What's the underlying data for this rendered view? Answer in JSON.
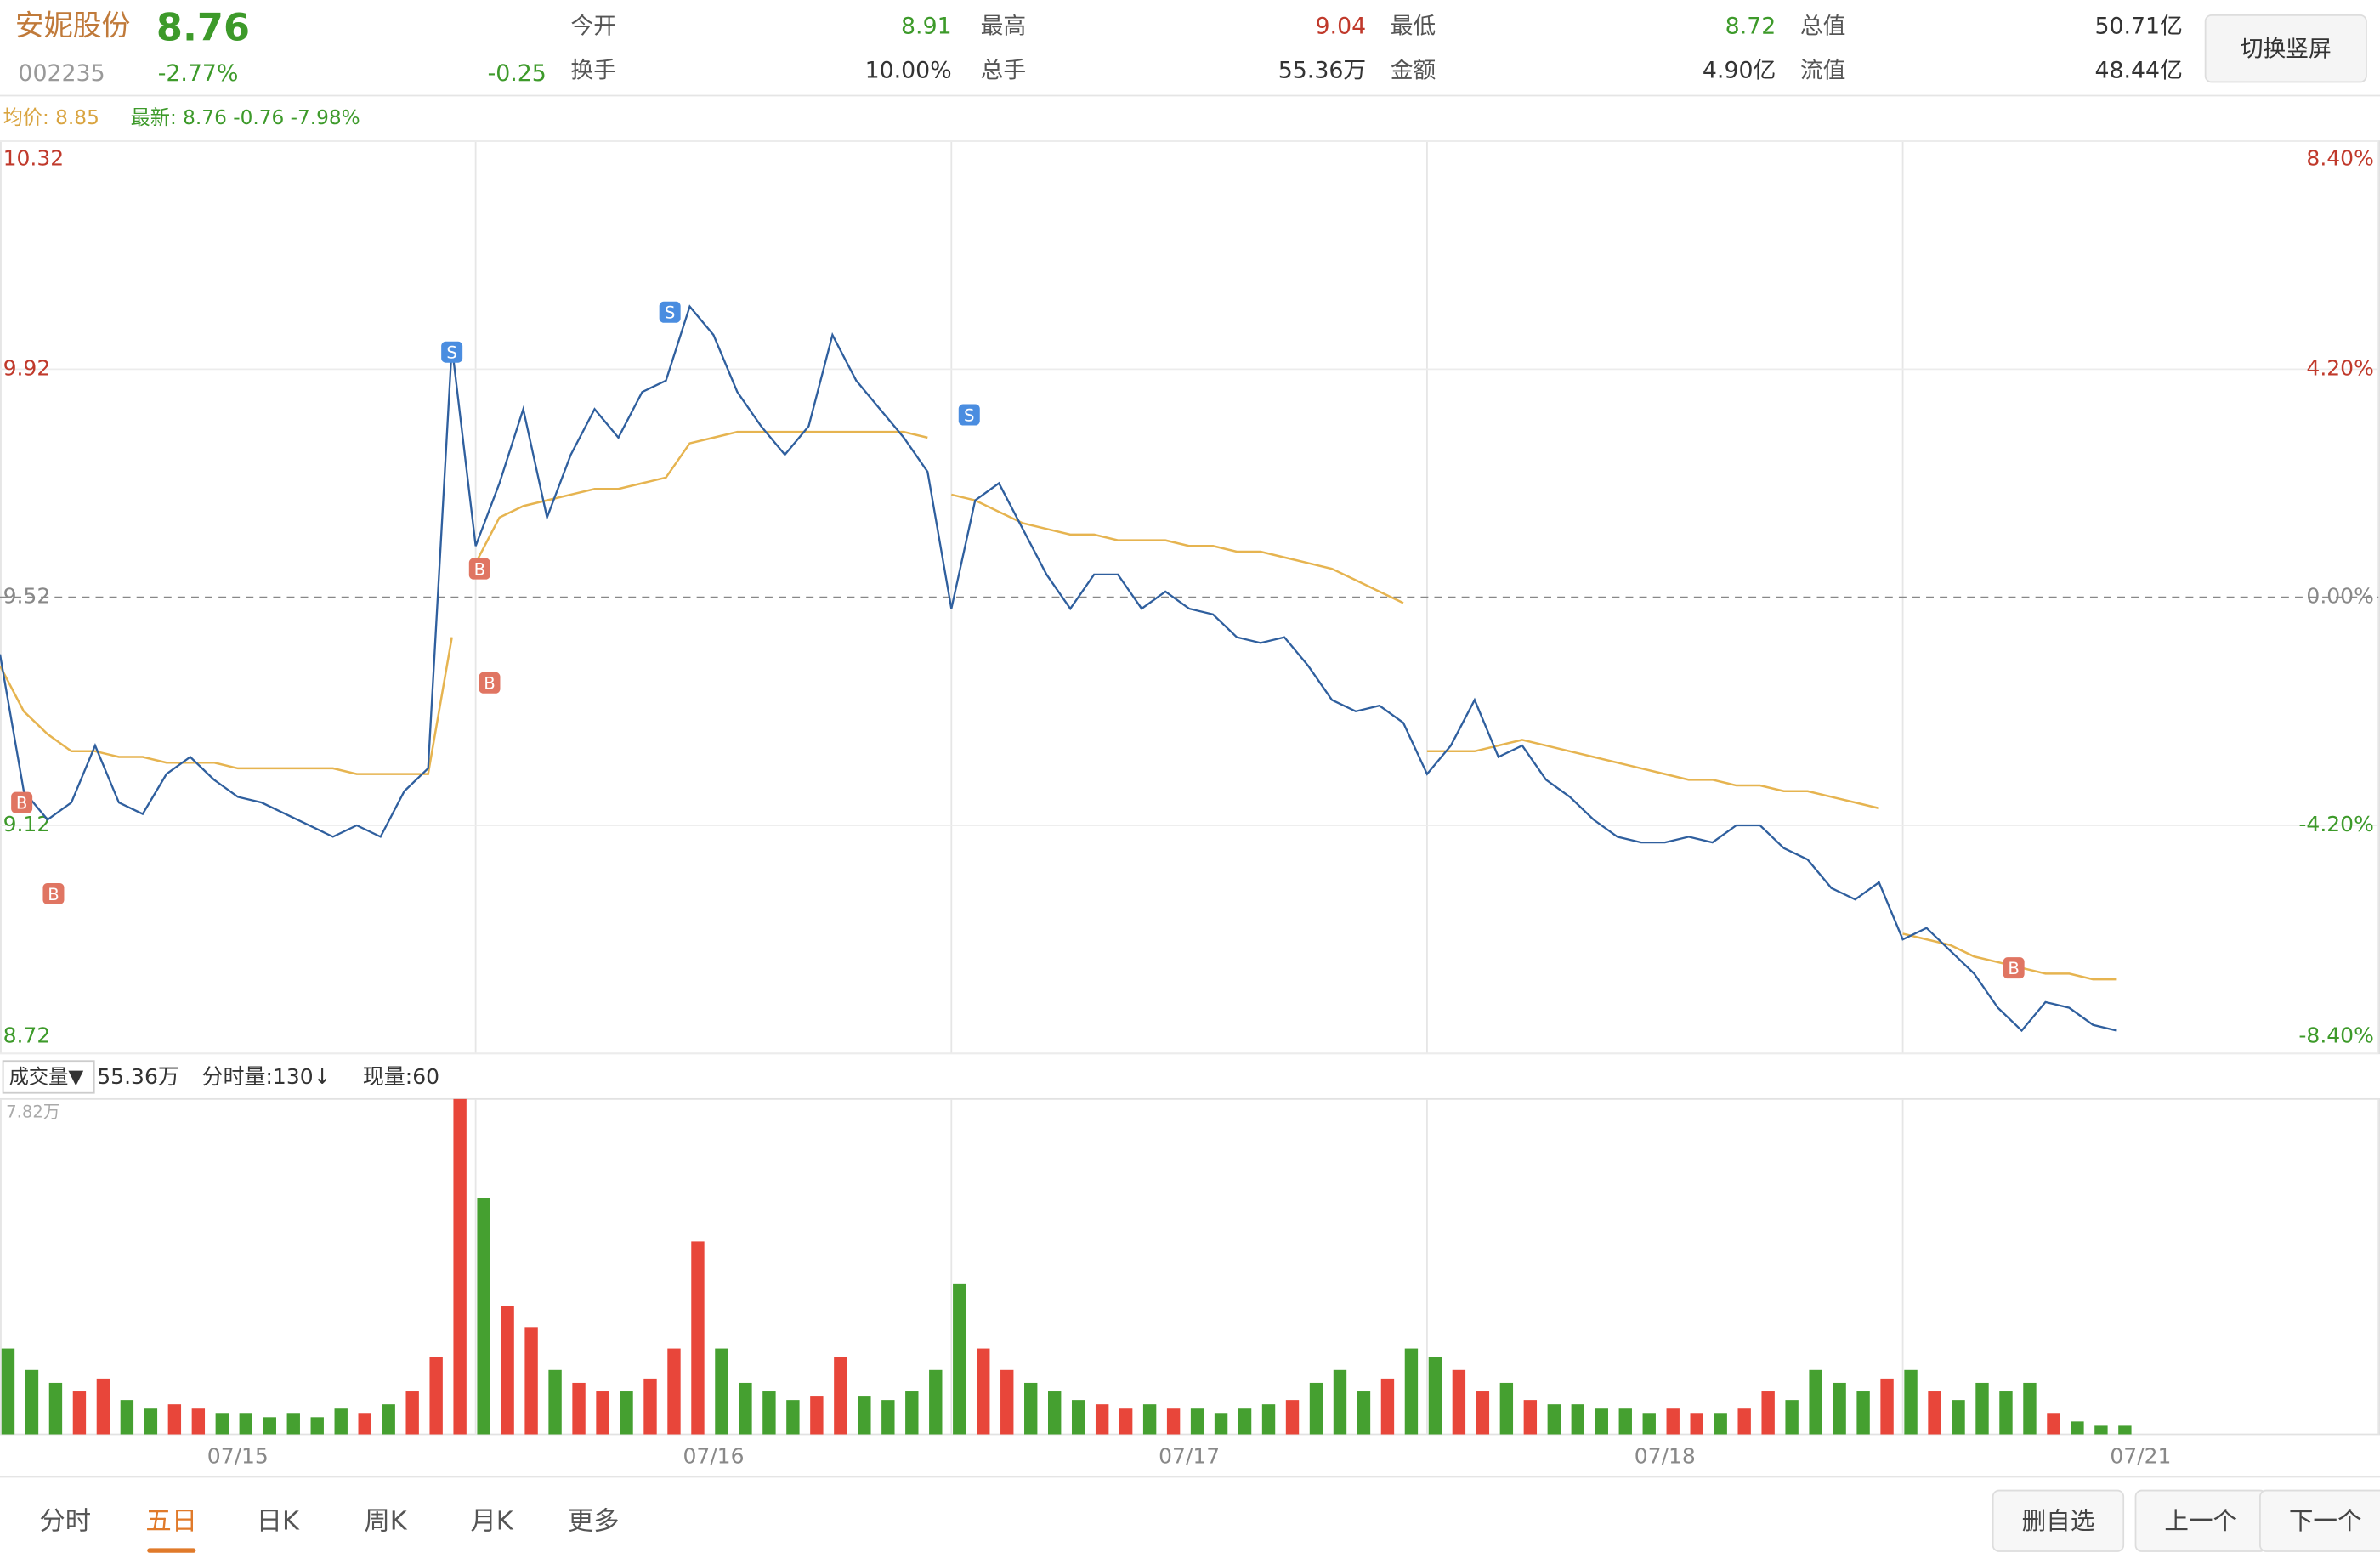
{
  "header": {
    "name": "安妮股份",
    "price": "8.76",
    "code": "002235",
    "change_pct": "-2.77%",
    "change": "-0.25",
    "fields": [
      {
        "label": "今开",
        "value": "8.91"
      },
      {
        "label": "最高",
        "value": "9.04"
      },
      {
        "label": "最低",
        "value": "8.72"
      },
      {
        "label": "总值",
        "value": "50.71亿"
      },
      {
        "label": "换手",
        "value": "10.00%"
      },
      {
        "label": "总手",
        "value": "55.36万"
      },
      {
        "label": "金额",
        "value": "4.90亿"
      },
      {
        "label": "流值",
        "value": "48.44亿"
      }
    ],
    "button": "切换竖屏"
  },
  "legend": {
    "avg": "均价: 8.85",
    "latest": "最新: 8.76 -0.76 -7.98%"
  },
  "volume_legend": {
    "label": "成交量▼",
    "total": "55.36万",
    "per_minute": "分时量:130↓",
    "current": "现量:60"
  },
  "chart_data": [
    {
      "type": "line",
      "x": [
        0,
        12,
        24,
        36,
        48,
        60,
        72,
        84,
        96,
        108,
        120,
        132,
        144,
        156,
        168,
        180,
        192,
        204,
        216,
        228,
        240,
        252,
        264,
        276,
        288,
        300,
        312,
        324,
        336,
        348,
        360,
        372,
        384,
        396,
        408,
        420,
        432,
        444,
        456,
        468,
        480,
        492,
        504,
        516,
        528,
        540,
        552,
        564,
        576,
        588,
        600,
        612,
        624,
        636,
        648,
        660,
        672,
        684,
        696,
        708,
        720,
        732,
        744,
        756,
        768,
        780,
        792,
        804,
        816,
        828,
        840,
        852,
        864,
        876,
        888,
        900,
        912,
        924,
        936,
        948,
        960,
        972,
        984,
        996,
        1008,
        1020,
        1032,
        1044,
        1056,
        1068
      ],
      "series": [
        {
          "name": "最新",
          "color": "#2f5f9e",
          "values": [
            9.42,
            9.18,
            9.13,
            9.16,
            9.26,
            9.16,
            9.14,
            9.21,
            9.24,
            9.2,
            9.17,
            9.16,
            9.14,
            9.12,
            9.1,
            9.12,
            9.1,
            9.18,
            9.22,
            9.96,
            9.61,
            9.72,
            9.85,
            9.66,
            9.77,
            9.85,
            9.8,
            9.88,
            9.9,
            10.03,
            9.98,
            9.88,
            9.82,
            9.77,
            9.82,
            9.98,
            9.9,
            9.85,
            9.8,
            9.74,
            9.5,
            9.69,
            9.72,
            9.64,
            9.56,
            9.5,
            9.56,
            9.56,
            9.5,
            9.53,
            9.5,
            9.49,
            9.45,
            9.44,
            9.45,
            9.4,
            9.34,
            9.32,
            9.33,
            9.3,
            9.21,
            9.26,
            9.34,
            9.24,
            9.26,
            9.2,
            9.17,
            9.13,
            9.1,
            9.09,
            9.09,
            9.1,
            9.09,
            9.12,
            9.12,
            9.08,
            9.06,
            9.01,
            8.99,
            9.02,
            8.92,
            8.94,
            8.9,
            8.86,
            8.8,
            8.76,
            8.81,
            8.8,
            8.77,
            8.76
          ]
        },
        {
          "name": "均价",
          "color": "#e6b450",
          "values": [
            9.4,
            9.32,
            9.28,
            9.25,
            9.25,
            9.24,
            9.24,
            9.23,
            9.23,
            9.23,
            9.22,
            9.22,
            9.22,
            9.22,
            9.22,
            9.21,
            9.21,
            9.21,
            9.21,
            9.45,
            9.58,
            9.66,
            9.68,
            9.69,
            9.7,
            9.71,
            9.71,
            9.72,
            9.73,
            9.79,
            9.8,
            9.81,
            9.81,
            9.81,
            9.81,
            9.81,
            9.81,
            9.81,
            9.81,
            9.8,
            9.7,
            9.69,
            9.67,
            9.65,
            9.64,
            9.63,
            9.63,
            9.62,
            9.62,
            9.62,
            9.61,
            9.61,
            9.6,
            9.6,
            9.59,
            9.58,
            9.57,
            9.55,
            9.53,
            9.51,
            9.25,
            9.25,
            9.25,
            9.26,
            9.27,
            9.26,
            9.25,
            9.24,
            9.23,
            9.22,
            9.21,
            9.2,
            9.2,
            9.19,
            9.19,
            9.18,
            9.18,
            9.17,
            9.16,
            9.15,
            8.93,
            8.92,
            8.91,
            8.89,
            8.88,
            8.87,
            8.86,
            8.86,
            8.85,
            8.85
          ]
        }
      ],
      "xlim": [
        0,
        1200
      ],
      "xgrid": [
        0,
        240,
        480,
        720,
        960,
        1200
      ],
      "ylim": [
        8.72,
        10.32
      ],
      "yticks": [
        10.32,
        9.92,
        9.52,
        9.12,
        8.72
      ],
      "y2lim": [
        -8.4,
        8.4
      ],
      "y2ticks": [
        {
          "value": 8.4,
          "label": "8.40%"
        },
        {
          "value": 4.2,
          "label": "4.20%"
        },
        {
          "value": 0,
          "label": "0.00%"
        },
        {
          "value": -4.2,
          "label": "-4.20%"
        },
        {
          "value": -8.4,
          "label": "-8.40%"
        }
      ],
      "up_color": "#c0392b",
      "down_color": "#3d9a2a",
      "flat_color": "#888888",
      "grid": true,
      "annotations": [
        {
          "x": 11,
          "y": 9.16,
          "text": "B"
        },
        {
          "x": 27,
          "y": 9.0,
          "text": "B"
        },
        {
          "x": 228,
          "y": 9.95,
          "text": "S"
        },
        {
          "x": 242,
          "y": 9.57,
          "text": "B"
        },
        {
          "x": 247,
          "y": 9.37,
          "text": "B"
        },
        {
          "x": 338,
          "y": 10.02,
          "text": "S"
        },
        {
          "x": 489,
          "y": 9.84,
          "text": "S"
        },
        {
          "x": 1016,
          "y": 8.87,
          "text": "B"
        }
      ]
    },
    {
      "type": "bar",
      "x": [
        0,
        12,
        24,
        36,
        48,
        60,
        72,
        84,
        96,
        108,
        120,
        132,
        144,
        156,
        168,
        180,
        192,
        204,
        216,
        228,
        240,
        252,
        264,
        276,
        288,
        300,
        312,
        324,
        336,
        348,
        360,
        372,
        384,
        396,
        408,
        420,
        432,
        444,
        456,
        468,
        480,
        492,
        504,
        516,
        528,
        540,
        552,
        564,
        576,
        588,
        600,
        612,
        624,
        636,
        648,
        660,
        672,
        684,
        696,
        708,
        720,
        732,
        744,
        756,
        768,
        780,
        792,
        804,
        816,
        828,
        840,
        852,
        864,
        876,
        888,
        900,
        912,
        924,
        936,
        948,
        960,
        972,
        984,
        996,
        1008,
        1020,
        1032,
        1044,
        1056,
        1068
      ],
      "values": [
        2.0,
        1.5,
        1.2,
        1.0,
        1.3,
        0.8,
        0.6,
        0.7,
        0.6,
        0.5,
        0.5,
        0.4,
        0.5,
        0.4,
        0.6,
        0.5,
        0.7,
        1.0,
        1.8,
        7.82,
        5.5,
        3.0,
        2.5,
        1.5,
        1.2,
        1.0,
        1.0,
        1.3,
        2.0,
        4.5,
        2.0,
        1.2,
        1.0,
        0.8,
        0.9,
        1.8,
        0.9,
        0.8,
        1.0,
        1.5,
        3.5,
        2.0,
        1.5,
        1.2,
        1.0,
        0.8,
        0.7,
        0.6,
        0.7,
        0.6,
        0.6,
        0.5,
        0.6,
        0.7,
        0.8,
        1.2,
        1.5,
        1.0,
        1.3,
        2.0,
        1.8,
        1.5,
        1.0,
        1.2,
        0.8,
        0.7,
        0.7,
        0.6,
        0.6,
        0.5,
        0.6,
        0.5,
        0.5,
        0.6,
        1.0,
        0.8,
        1.5,
        1.2,
        1.0,
        1.3,
        1.5,
        1.0,
        0.8,
        1.2,
        1.0,
        1.2,
        0.5,
        0.3,
        0.2,
        0.2
      ],
      "xlim": [
        0,
        1200
      ],
      "ylim": [
        0,
        7.82
      ],
      "yticks": [
        {
          "value": 7.82,
          "label": "7.82万"
        }
      ],
      "xticks": [
        {
          "value": 120,
          "label": "07/15"
        },
        {
          "value": 360,
          "label": "07/16"
        },
        {
          "value": 600,
          "label": "07/17"
        },
        {
          "value": 840,
          "label": "07/18"
        },
        {
          "value": 1080,
          "label": "07/21"
        }
      ],
      "up_color": "#e8463a",
      "down_color": "#45a030"
    }
  ],
  "tabs": {
    "items": [
      "分时",
      "五日",
      "日K",
      "周K",
      "月K",
      "更多"
    ],
    "active": 1
  },
  "buttons": [
    "删自选",
    "上一个",
    "下一个"
  ]
}
